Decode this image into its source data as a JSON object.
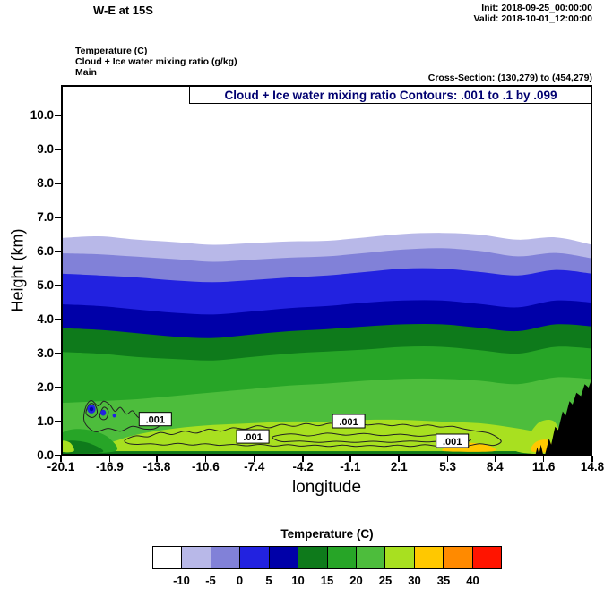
{
  "header": {
    "title": "W-E at 15S",
    "init_label": "Init: 2018-09-25_00:00:00",
    "valid_label": "Valid: 2018-10-01_12:00:00",
    "param_lines": [
      "Temperature  (C)",
      "Cloud + Ice water mixing ratio   (g/kg)",
      "Main"
    ],
    "cross_section": "Cross-Section: (130,279) to (454,279)"
  },
  "plot": {
    "inner_title": "Cloud + Ice water mixing ratio Contours: .001 to .1 by .099",
    "contour_label": ".001"
  },
  "axes": {
    "y_label": "Height (km)",
    "x_label": "longitude"
  },
  "colorbar": {
    "title": "Temperature  (C)",
    "tick_labels": [
      "-10",
      "-5",
      "0",
      "5",
      "10",
      "15",
      "20",
      "25",
      "30",
      "35",
      "40"
    ],
    "colors": [
      "#ffffff",
      "#b8b8e8",
      "#8181d8",
      "#2222e0",
      "#0000a8",
      "#0e7a1b",
      "#27a527",
      "#4dbd3c",
      "#a8e020",
      "#ffc800",
      "#ff8a00",
      "#ff1400"
    ]
  },
  "chart_data": {
    "type": "filled-contour-cross-section",
    "title": "Cloud + Ice water mixing ratio Contours: .001 to .1 by .099",
    "shaded_variable": "Temperature (C)",
    "contoured_variable": "Cloud + Ice water mixing ratio (g/kg)",
    "xlabel": "longitude",
    "ylabel": "Height (km)",
    "x_range": [
      -20.1,
      14.8
    ],
    "y_range": [
      0,
      10.9
    ],
    "x_ticks": [
      -20.1,
      -16.9,
      -13.8,
      -10.6,
      -7.4,
      -4.2,
      -1.1,
      2.1,
      5.3,
      8.4,
      11.6,
      14.8
    ],
    "x_tick_labels": [
      "-20.1",
      "-16.9",
      "-13.8",
      "-10.6",
      "-7.4",
      "-4.2",
      "-1.1",
      "2.1",
      "5.3",
      "8.4",
      "11.6",
      "14.8"
    ],
    "y_ticks": [
      0,
      1,
      2,
      3,
      4,
      5,
      6,
      7,
      8,
      9,
      10
    ],
    "y_tick_labels": [
      "0.0",
      "1.0",
      "2.0",
      "3.0",
      "4.0",
      "5.0",
      "6.0",
      "7.0",
      "8.0",
      "9.0",
      "10.0"
    ],
    "temperature_levels_c": [
      -10,
      -5,
      0,
      5,
      10,
      15,
      20,
      25,
      30,
      35,
      40
    ],
    "background": "#ffffff",
    "sample_lons": [
      -20.1,
      -17.6,
      -15.1,
      -12.6,
      -10.1,
      -7.6,
      -5.1,
      -2.6,
      -0.1,
      2.4,
      4.9,
      7.4,
      9.9,
      12.4,
      14.8
    ],
    "isotherm_heights_km": [
      {
        "level_c": -10,
        "fill_below": "#b8b8e8",
        "heights": [
          6.4,
          6.45,
          6.35,
          6.28,
          6.2,
          6.25,
          6.3,
          6.32,
          6.42,
          6.52,
          6.55,
          6.5,
          6.35,
          6.42,
          6.2
        ]
      },
      {
        "level_c": -5,
        "fill_below": "#8181d8",
        "heights": [
          5.95,
          5.92,
          5.85,
          5.78,
          5.7,
          5.76,
          5.82,
          5.86,
          5.96,
          6.06,
          6.1,
          6.02,
          5.86,
          5.96,
          5.8
        ]
      },
      {
        "level_c": 0,
        "fill_below": "#2222e0",
        "heights": [
          5.35,
          5.3,
          5.24,
          5.15,
          5.1,
          5.16,
          5.24,
          5.3,
          5.4,
          5.5,
          5.5,
          5.4,
          5.3,
          5.46,
          5.35
        ]
      },
      {
        "level_c": 5,
        "fill_below": "#0000a8",
        "heights": [
          4.45,
          4.4,
          4.3,
          4.2,
          4.15,
          4.24,
          4.34,
          4.4,
          4.5,
          4.56,
          4.56,
          4.46,
          4.36,
          4.56,
          4.5
        ]
      },
      {
        "level_c": 10,
        "fill_below": "#0e7a1b",
        "heights": [
          3.75,
          3.7,
          3.6,
          3.5,
          3.46,
          3.56,
          3.66,
          3.72,
          3.8,
          3.86,
          3.86,
          3.76,
          3.66,
          3.86,
          3.8
        ]
      },
      {
        "level_c": 15,
        "fill_below": "#27a527",
        "heights": [
          3.05,
          3.0,
          2.9,
          2.84,
          2.8,
          2.9,
          3.0,
          3.06,
          3.12,
          3.2,
          3.2,
          3.1,
          3.0,
          3.2,
          3.15
        ]
      },
      {
        "level_c": 20,
        "fill_below": "#4dbd3c",
        "heights": [
          1.55,
          1.6,
          1.66,
          1.76,
          1.86,
          1.96,
          2.06,
          2.12,
          2.2,
          2.26,
          2.26,
          2.2,
          2.1,
          2.3,
          2.25
        ]
      },
      {
        "level_c": 25,
        "fill_below": "#a8e020",
        "heights": [
          0.2,
          0.3,
          0.62,
          0.8,
          0.9,
          0.95,
          1.0,
          1.0,
          1.05,
          1.05,
          1.0,
          0.95,
          0.8,
          0.6,
          0.5
        ]
      }
    ],
    "surface_strip": {
      "color": "#0e7a1b",
      "top_km": 0.13
    },
    "patches": [
      {
        "name": "left-cool-pocket-green",
        "color": "#27a527",
        "points": [
          [
            -20.1,
            0.12
          ],
          [
            -16.6,
            0.12
          ],
          [
            -16.9,
            0.5
          ],
          [
            -17.9,
            0.72
          ],
          [
            -19.2,
            0.78
          ],
          [
            -20.1,
            0.62
          ]
        ]
      },
      {
        "name": "left-cool-pocket-dark",
        "color": "#0e7a1b",
        "points": [
          [
            -20.1,
            0.1
          ],
          [
            -17.4,
            0.1
          ],
          [
            -18.1,
            0.34
          ],
          [
            -19.3,
            0.44
          ],
          [
            -20.1,
            0.36
          ]
        ]
      },
      {
        "name": "left-corner-warm-spot",
        "color": "#a8e020",
        "points": [
          [
            -20.1,
            0.13
          ],
          [
            -19.25,
            0.13
          ],
          [
            -19.5,
            0.38
          ],
          [
            -20.1,
            0.42
          ]
        ]
      },
      {
        "name": "surface-warm-patch-mid",
        "color": "#ffc800",
        "points": [
          [
            5.1,
            0.13
          ],
          [
            8.3,
            0.13
          ],
          [
            7.8,
            0.32
          ],
          [
            6.2,
            0.38
          ],
          [
            5.4,
            0.27
          ]
        ]
      },
      {
        "name": "terrain-flank-chartreuse",
        "color": "#a8e020",
        "points": [
          [
            9.8,
            0.13
          ],
          [
            12.7,
            0.13
          ],
          [
            12.4,
            0.95
          ],
          [
            11.4,
            1.0
          ],
          [
            10.6,
            0.6
          ]
        ]
      },
      {
        "name": "terrain-base-yellow",
        "color": "#ffc800",
        "points": [
          [
            10.8,
            0.13
          ],
          [
            12.2,
            0.13
          ],
          [
            11.9,
            0.45
          ],
          [
            11.1,
            0.4
          ]
        ]
      }
    ],
    "terrain": {
      "color": "#000000",
      "points": [
        [
          11.05,
          0
        ],
        [
          11.18,
          0.25
        ],
        [
          11.3,
          0.04
        ],
        [
          11.42,
          0.32
        ],
        [
          11.55,
          0.06
        ],
        [
          11.7,
          0.04
        ],
        [
          11.95,
          0.5
        ],
        [
          12.1,
          0.32
        ],
        [
          12.35,
          0.85
        ],
        [
          12.55,
          0.75
        ],
        [
          12.85,
          1.3
        ],
        [
          13.05,
          1.18
        ],
        [
          13.3,
          1.6
        ],
        [
          13.5,
          1.5
        ],
        [
          13.75,
          1.85
        ],
        [
          14.05,
          1.75
        ],
        [
          14.3,
          2.1
        ],
        [
          14.55,
          2.0
        ],
        [
          14.8,
          2.3
        ],
        [
          14.8,
          0
        ]
      ]
    },
    "contours": {
      "color": "#222222",
      "width": 1,
      "interval_info": ".001 to .1 by .099",
      "loops": [
        [
          [
            -18.6,
            1.08
          ],
          [
            -18.45,
            1.45
          ],
          [
            -18.1,
            1.62
          ],
          [
            -17.65,
            1.46
          ],
          [
            -17.3,
            1.6
          ],
          [
            -16.9,
            1.5
          ],
          [
            -16.55,
            1.3
          ],
          [
            -16.2,
            1.42
          ],
          [
            -15.8,
            1.22
          ],
          [
            -15.4,
            1.32
          ],
          [
            -15.0,
            1.12
          ],
          [
            -14.5,
            1.18
          ],
          [
            -14.0,
            1.06
          ],
          [
            -13.55,
            0.95
          ],
          [
            -13.9,
            0.8
          ],
          [
            -14.6,
            0.78
          ],
          [
            -15.4,
            0.86
          ],
          [
            -16.2,
            0.72
          ],
          [
            -17.0,
            0.8
          ],
          [
            -17.8,
            0.7
          ],
          [
            -18.35,
            0.85
          ]
        ],
        [
          [
            -15.9,
            0.45
          ],
          [
            -15.2,
            0.58
          ],
          [
            -14.4,
            0.55
          ],
          [
            -13.6,
            0.68
          ],
          [
            -12.8,
            0.62
          ],
          [
            -12.0,
            0.72
          ],
          [
            -11.2,
            0.66
          ],
          [
            -10.4,
            0.78
          ],
          [
            -9.6,
            0.72
          ],
          [
            -8.8,
            0.82
          ],
          [
            -8.0,
            0.78
          ],
          [
            -7.2,
            0.88
          ],
          [
            -6.4,
            0.82
          ],
          [
            -5.6,
            0.92
          ],
          [
            -4.8,
            0.86
          ],
          [
            -4.0,
            0.94
          ],
          [
            -3.2,
            0.88
          ],
          [
            -2.4,
            0.95
          ],
          [
            -1.6,
            0.9
          ],
          [
            -0.8,
            0.96
          ],
          [
            0.0,
            0.9
          ],
          [
            0.8,
            0.93
          ],
          [
            1.6,
            0.88
          ],
          [
            2.4,
            0.92
          ],
          [
            3.2,
            0.86
          ],
          [
            4.0,
            0.9
          ],
          [
            4.8,
            0.84
          ],
          [
            5.6,
            0.86
          ],
          [
            6.4,
            0.78
          ],
          [
            7.2,
            0.72
          ],
          [
            8.0,
            0.66
          ],
          [
            8.6,
            0.52
          ],
          [
            8.8,
            0.4
          ],
          [
            8.3,
            0.3
          ],
          [
            7.4,
            0.35
          ],
          [
            6.5,
            0.28
          ],
          [
            5.6,
            0.33
          ],
          [
            4.7,
            0.28
          ],
          [
            3.8,
            0.32
          ],
          [
            2.9,
            0.27
          ],
          [
            2.0,
            0.31
          ],
          [
            1.1,
            0.27
          ],
          [
            0.2,
            0.3
          ],
          [
            -0.7,
            0.27
          ],
          [
            -1.6,
            0.31
          ],
          [
            -2.5,
            0.27
          ],
          [
            -3.4,
            0.31
          ],
          [
            -4.3,
            0.28
          ],
          [
            -5.2,
            0.32
          ],
          [
            -6.1,
            0.28
          ],
          [
            -7.0,
            0.33
          ],
          [
            -7.9,
            0.29
          ],
          [
            -8.8,
            0.33
          ],
          [
            -9.7,
            0.3
          ],
          [
            -10.6,
            0.35
          ],
          [
            -11.5,
            0.31
          ],
          [
            -12.4,
            0.36
          ],
          [
            -13.3,
            0.31
          ],
          [
            -14.2,
            0.35
          ],
          [
            -15.1,
            0.33
          ],
          [
            -15.7,
            0.36
          ]
        ],
        [
          [
            -6.2,
            0.55
          ],
          [
            -5.0,
            0.64
          ],
          [
            -3.8,
            0.58
          ],
          [
            -2.6,
            0.66
          ],
          [
            -1.4,
            0.6
          ],
          [
            -0.2,
            0.65
          ],
          [
            1.0,
            0.59
          ],
          [
            2.2,
            0.63
          ],
          [
            3.4,
            0.57
          ],
          [
            4.6,
            0.61
          ],
          [
            5.8,
            0.54
          ],
          [
            6.8,
            0.47
          ],
          [
            6.3,
            0.4
          ],
          [
            5.2,
            0.44
          ],
          [
            4.0,
            0.4
          ],
          [
            2.8,
            0.43
          ],
          [
            1.6,
            0.39
          ],
          [
            0.4,
            0.42
          ],
          [
            -0.8,
            0.39
          ],
          [
            -2.0,
            0.42
          ],
          [
            -3.2,
            0.39
          ],
          [
            -4.4,
            0.43
          ],
          [
            -5.6,
            0.41
          ]
        ],
        [
          [
            -18.45,
            1.25
          ],
          [
            -18.2,
            1.52
          ],
          [
            -17.85,
            1.48
          ],
          [
            -17.72,
            1.25
          ],
          [
            -18.05,
            1.12
          ]
        ],
        [
          [
            -17.55,
            1.18
          ],
          [
            -17.3,
            1.42
          ],
          [
            -17.0,
            1.32
          ],
          [
            -17.1,
            1.1
          ],
          [
            -17.38,
            1.06
          ]
        ]
      ]
    },
    "contour_label_positions": [
      {
        "lon": -13.9,
        "h": 1.06
      },
      {
        "lon": -7.5,
        "h": 0.55
      },
      {
        "lon": -1.2,
        "h": 1.0
      },
      {
        "lon": 5.6,
        "h": 0.42
      }
    ],
    "cloud_blobs": [
      {
        "color": "#2222e0",
        "lon": -18.1,
        "h": 1.37,
        "rx": 0.27,
        "ry": 0.13
      },
      {
        "color": "#0000a8",
        "lon": -18.1,
        "h": 1.37,
        "rx": 0.13,
        "ry": 0.06
      },
      {
        "color": "#2222e0",
        "lon": -17.32,
        "h": 1.26,
        "rx": 0.18,
        "ry": 0.09
      },
      {
        "color": "#2222e0",
        "lon": -16.6,
        "h": 1.18,
        "rx": 0.11,
        "ry": 0.06
      }
    ]
  }
}
